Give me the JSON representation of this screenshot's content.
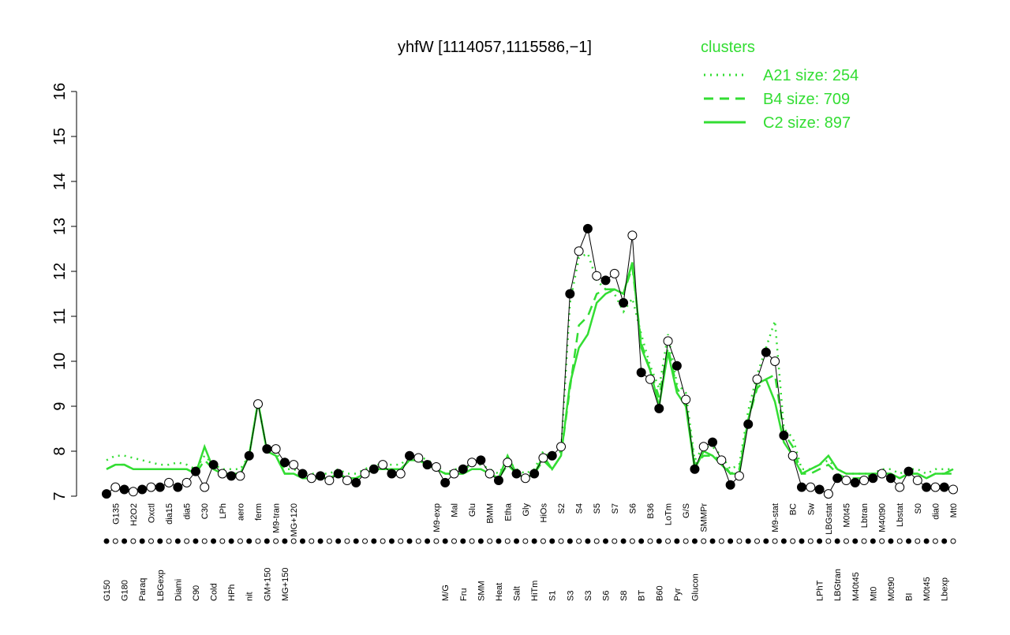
{
  "chart_data": {
    "type": "line",
    "title": "yhfW [1114057,1115586,−1]",
    "legend_title": "clusters",
    "categories": [
      "G150",
      "G135",
      "G180",
      "H2O2",
      "Paraq",
      "Oxctl",
      "LBGexp",
      "dia15",
      "Diami",
      "dia5",
      "C90",
      "C30",
      "Cold",
      "LPh",
      "HPh",
      "aero",
      "nit",
      "ferm",
      "GM+150",
      "M9-tran",
      "MG+150",
      "MG+120",
      null,
      null,
      null,
      null,
      null,
      null,
      null,
      null,
      null,
      null,
      null,
      null,
      null,
      null,
      null,
      "M9-exp",
      "M/G",
      "Mal",
      "Fru",
      "Glu",
      "SMM",
      "BMM",
      "Heat",
      "Etha",
      "Salt",
      "Gly",
      "HiTm",
      "HiOs",
      "S1",
      "S2",
      "S3",
      "S4",
      "S3",
      "S5",
      "S6",
      "S7",
      "S8",
      "S6",
      "BT",
      "B36",
      "B60",
      "LoTm",
      "Pyr",
      "G/S",
      "Glucon",
      "SMMPr",
      null,
      null,
      null,
      null,
      null,
      null,
      null,
      "M9-stat",
      null,
      "BC",
      null,
      "Sw",
      "LPhT",
      "LBGstat",
      "LBGtran",
      "M0t45",
      "M40t45",
      "Lbtran",
      "Mt0",
      "M40t90",
      "M0t90",
      "Lbstat",
      "BI",
      "S0",
      "M0t45",
      "dia0",
      "Lbexp",
      "Mt0"
    ],
    "values": [
      7.05,
      7.2,
      7.15,
      7.1,
      7.15,
      7.2,
      7.2,
      7.3,
      7.2,
      7.3,
      7.55,
      7.2,
      7.7,
      7.5,
      7.45,
      7.45,
      7.9,
      9.05,
      8.05,
      8.05,
      7.75,
      7.7,
      7.5,
      7.4,
      7.45,
      7.35,
      7.5,
      7.35,
      7.3,
      7.5,
      7.6,
      7.7,
      7.5,
      7.5,
      7.9,
      7.85,
      7.7,
      7.65,
      7.3,
      7.5,
      7.6,
      7.75,
      7.8,
      7.5,
      7.35,
      7.75,
      7.5,
      7.4,
      7.5,
      7.85,
      7.9,
      8.1,
      11.5,
      12.45,
      12.95,
      11.9,
      11.8,
      11.95,
      11.3,
      12.8,
      9.75,
      9.6,
      8.95,
      10.45,
      9.9,
      9.15,
      7.6,
      8.1,
      8.2,
      7.8,
      7.25,
      7.45,
      8.6,
      9.6,
      10.2,
      10.0,
      8.35,
      7.9,
      7.2,
      7.2,
      7.15,
      7.05,
      7.4,
      7.35,
      7.3,
      7.35,
      7.4,
      7.5,
      7.4,
      7.2,
      7.55,
      7.35,
      7.2,
      7.2,
      7.2,
      7.15
    ],
    "series": [
      {
        "name": "A21 size: 254",
        "color": "#33dd33",
        "style": "dotted",
        "values": [
          7.8,
          7.9,
          7.9,
          7.85,
          7.8,
          7.75,
          7.7,
          7.7,
          7.75,
          7.7,
          7.6,
          7.9,
          7.7,
          7.6,
          7.6,
          7.6,
          7.9,
          9.1,
          8.0,
          8.0,
          7.6,
          7.6,
          7.5,
          7.5,
          7.5,
          7.5,
          7.6,
          7.5,
          7.5,
          7.6,
          7.7,
          7.7,
          7.7,
          7.7,
          7.9,
          7.9,
          7.8,
          7.7,
          7.5,
          7.6,
          7.6,
          7.7,
          7.7,
          7.6,
          7.5,
          7.8,
          7.6,
          7.5,
          7.6,
          8.0,
          7.8,
          8.0,
          11.3,
          12.3,
          12.4,
          11.8,
          11.6,
          11.5,
          11.1,
          11.4,
          10.6,
          9.9,
          9.4,
          10.6,
          9.5,
          9.3,
          7.8,
          8.1,
          8.1,
          7.9,
          7.6,
          7.7,
          8.9,
          9.7,
          10.3,
          10.9,
          8.5,
          8.3,
          7.6,
          7.6,
          7.7,
          7.8,
          7.6,
          7.5,
          7.5,
          7.5,
          7.5,
          7.6,
          7.6,
          7.5,
          7.6,
          7.6,
          7.5,
          7.6,
          7.6,
          7.6
        ]
      },
      {
        "name": "B4 size: 709",
        "color": "#33dd33",
        "style": "dashed",
        "values": [
          7.6,
          7.7,
          7.7,
          7.6,
          7.6,
          7.6,
          7.6,
          7.6,
          7.6,
          7.6,
          7.5,
          7.8,
          7.6,
          7.5,
          7.5,
          7.5,
          7.9,
          9.1,
          8.0,
          7.9,
          7.5,
          7.5,
          7.4,
          7.4,
          7.4,
          7.4,
          7.5,
          7.4,
          7.4,
          7.5,
          7.6,
          7.6,
          7.6,
          7.6,
          7.8,
          7.8,
          7.7,
          7.6,
          7.5,
          7.5,
          7.5,
          7.6,
          7.6,
          7.5,
          7.4,
          7.7,
          7.5,
          7.4,
          7.5,
          7.8,
          7.6,
          7.9,
          9.4,
          10.8,
          11.0,
          11.5,
          11.6,
          11.6,
          11.5,
          12.1,
          10.4,
          9.8,
          9.2,
          10.3,
          9.4,
          9.1,
          7.7,
          7.9,
          7.9,
          7.8,
          7.5,
          7.6,
          8.7,
          9.4,
          9.6,
          9.7,
          8.4,
          8.1,
          7.5,
          7.5,
          7.6,
          7.7,
          7.5,
          7.4,
          7.4,
          7.4,
          7.5,
          7.5,
          7.5,
          7.4,
          7.5,
          7.5,
          7.4,
          7.5,
          7.5,
          7.5
        ]
      },
      {
        "name": "C2 size: 897",
        "color": "#33dd33",
        "style": "solid",
        "values": [
          7.6,
          7.7,
          7.7,
          7.6,
          7.6,
          7.6,
          7.6,
          7.6,
          7.6,
          7.6,
          7.5,
          8.1,
          7.6,
          7.5,
          7.5,
          7.5,
          7.9,
          9.1,
          8.0,
          7.9,
          7.5,
          7.5,
          7.4,
          7.4,
          7.4,
          7.4,
          7.5,
          7.4,
          7.4,
          7.5,
          7.6,
          7.6,
          7.6,
          7.6,
          7.8,
          7.8,
          7.7,
          7.6,
          7.5,
          7.5,
          7.5,
          7.6,
          7.6,
          7.5,
          7.4,
          7.9,
          7.5,
          7.4,
          7.5,
          7.9,
          7.6,
          7.9,
          9.5,
          10.3,
          10.6,
          11.3,
          11.5,
          11.6,
          11.5,
          12.2,
          10.3,
          9.8,
          9.0,
          10.2,
          9.3,
          9.0,
          7.6,
          8.0,
          7.9,
          7.7,
          7.5,
          7.5,
          8.7,
          9.5,
          9.6,
          9.1,
          8.2,
          7.9,
          7.5,
          7.6,
          7.7,
          7.9,
          7.6,
          7.5,
          7.5,
          7.5,
          7.5,
          7.5,
          7.5,
          7.4,
          7.5,
          7.5,
          7.4,
          7.5,
          7.5,
          7.6
        ]
      }
    ],
    "ylim": [
      7,
      16
    ],
    "yticks": [
      7,
      8,
      9,
      10,
      11,
      12,
      13,
      14,
      15,
      16
    ]
  }
}
